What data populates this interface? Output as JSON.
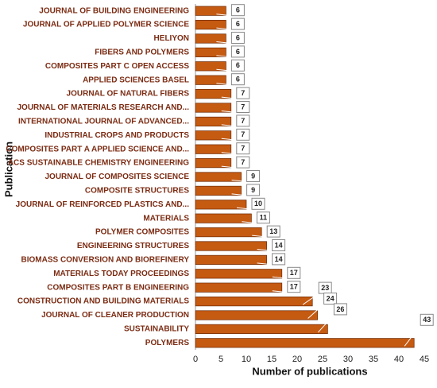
{
  "chart_data": {
    "type": "barh",
    "xlabel": "Number of publications",
    "ylabel": "Publication",
    "categories": [
      "JOURNAL OF BUILDING ENGINEERING",
      "JOURNAL OF APPLIED POLYMER SCIENCE",
      "HELIYON",
      "FIBERS AND POLYMERS",
      "COMPOSITES PART C OPEN ACCESS",
      "APPLIED SCIENCES BASEL",
      "JOURNAL OF NATURAL FIBERS",
      "JOURNAL OF MATERIALS RESEARCH AND...",
      "INTERNATIONAL JOURNAL OF ADVANCED...",
      "INDUSTRIAL CROPS AND PRODUCTS",
      "COMPOSITES PART A APPLIED SCIENCE AND...",
      "ACS SUSTAINABLE CHEMISTRY ENGINEERING",
      "JOURNAL OF COMPOSITES SCIENCE",
      "COMPOSITE STRUCTURES",
      "JOURNAL OF REINFORCED PLASTICS AND...",
      "MATERIALS",
      "POLYMER COMPOSITES",
      "ENGINEERING STRUCTURES",
      "BIOMASS CONVERSION AND BIOREFINERY",
      "MATERIALS TODAY PROCEEDINGS",
      "COMPOSITES PART B ENGINEERING",
      "CONSTRUCTION AND BUILDING MATERIALS",
      "JOURNAL OF CLEANER PRODUCTION",
      "SUSTAINABILITY",
      "POLYMERS"
    ],
    "values": [
      6,
      6,
      6,
      6,
      6,
      6,
      7,
      7,
      7,
      7,
      7,
      7,
      9,
      9,
      10,
      11,
      13,
      14,
      14,
      17,
      17,
      23,
      24,
      26,
      43
    ],
    "color": "#c55a11",
    "xlim": [
      0,
      45
    ],
    "xticks": [
      0,
      5,
      10,
      15,
      20,
      25,
      30,
      35,
      40,
      45
    ]
  }
}
